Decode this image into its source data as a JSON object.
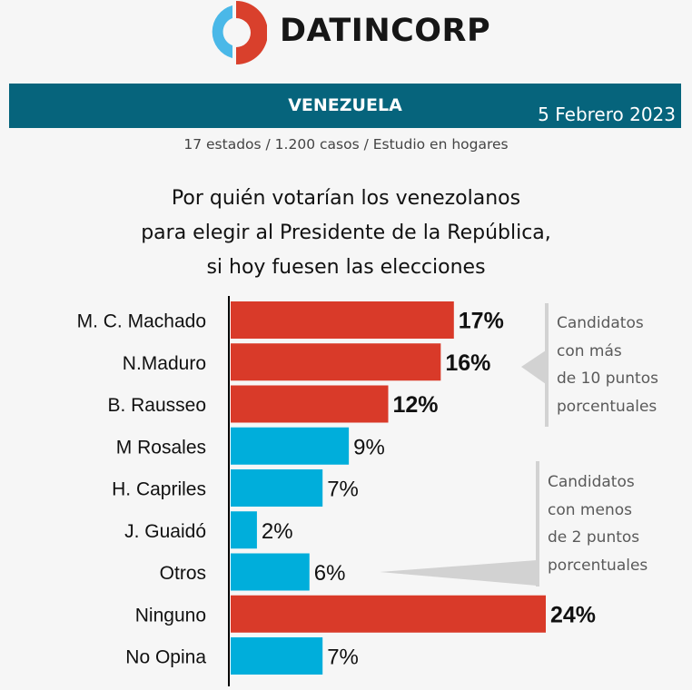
{
  "brand": {
    "name": "DATINCORP",
    "logo_icon": "split-ring-logo",
    "colors": {
      "blue": "#4ab8e8",
      "red": "#d9402c"
    }
  },
  "banner": {
    "title": "VENEZUELA",
    "date": "5 Febrero 2023",
    "color": "#06647c"
  },
  "subtitle": "17 estados / 1.200 casos / Estudio en hogares",
  "question": {
    "lines": [
      "Por quién votarían los venezolanos",
      "para elegir al Presidente de la República,",
      "si hoy fuesen las elecciones"
    ]
  },
  "callouts": [
    {
      "lines": [
        "Candidatos",
        "con más",
        "de 10 puntos",
        "porcentuales"
      ]
    },
    {
      "lines": [
        "Candidatos",
        "con menos",
        "de 2 puntos",
        "porcentuales"
      ]
    }
  ],
  "chart_data": {
    "type": "bar",
    "orientation": "horizontal",
    "title": "Por quién votarían los venezolanos para elegir al Presidente de la República, si hoy fuesen las elecciones",
    "xlabel": "",
    "ylabel": "",
    "unit": "%",
    "xlim": [
      0,
      24
    ],
    "grid": false,
    "categories": [
      "M. C. Machado",
      "N.Maduro",
      "B. Rausseo",
      "M Rosales",
      "H. Capriles",
      "J. Guaidó",
      "Otros",
      "Ninguno",
      "No Opina"
    ],
    "values": [
      17,
      16,
      12,
      9,
      7,
      2,
      6,
      24,
      7
    ],
    "labels": [
      "17%",
      "16%",
      "12%",
      "9%",
      "7%",
      "2%",
      "6%",
      "24%",
      "7%"
    ],
    "highlight": [
      true,
      true,
      true,
      false,
      false,
      false,
      false,
      true,
      false
    ],
    "colors": {
      "highlight": "#d93a29",
      "normal": "#00aedb"
    }
  }
}
